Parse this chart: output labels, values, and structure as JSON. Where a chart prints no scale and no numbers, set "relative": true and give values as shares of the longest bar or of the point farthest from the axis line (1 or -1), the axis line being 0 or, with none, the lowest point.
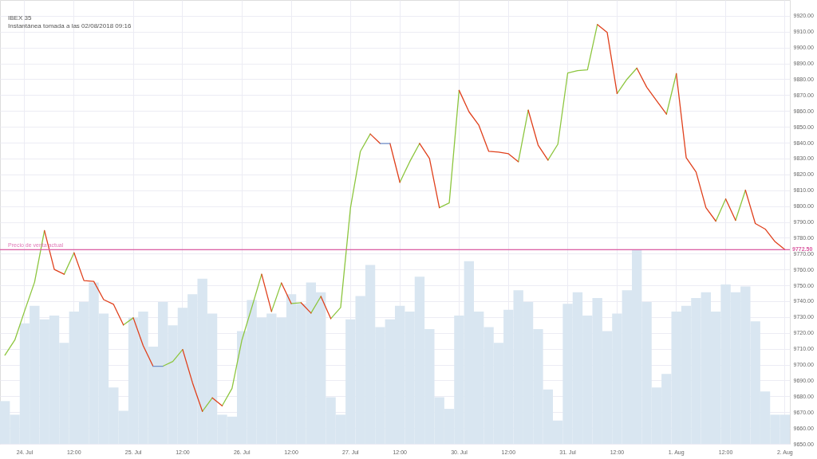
{
  "chart_data": [
    {
      "type": "line",
      "title": "IBEX 35",
      "subtitle": "Instantánea tomada a las 02/08/2018 09:16",
      "categories": [
        null,
        null,
        "24. Jul",
        null,
        null,
        null,
        null,
        "12:00",
        null,
        null,
        null,
        null,
        null,
        "25. Jul",
        null,
        null,
        null,
        null,
        "12:00",
        null,
        null,
        null,
        null,
        null,
        "26. Jul",
        null,
        null,
        null,
        null,
        "12:00",
        null,
        null,
        null,
        null,
        null,
        "27. Jul",
        null,
        null,
        null,
        null,
        "12:00",
        null,
        null,
        null,
        null,
        null,
        "30. Jul",
        null,
        null,
        null,
        null,
        "12:00",
        null,
        null,
        null,
        null,
        null,
        "31. Jul",
        null,
        null,
        null,
        null,
        "12:00",
        null,
        null,
        null,
        null,
        null,
        "1. Aug",
        null,
        null,
        null,
        null,
        "12:00",
        null,
        null,
        null,
        null,
        null,
        "2. Aug"
      ],
      "ylim": [
        9650,
        9930
      ],
      "yticks": [
        {
          "value": 9650,
          "label": "9650.00"
        },
        {
          "value": 9660,
          "label": "9660.00"
        },
        {
          "value": 9670,
          "label": "9670.00"
        },
        {
          "value": 9680,
          "label": "9680.00"
        },
        {
          "value": 9690,
          "label": "9690.00"
        },
        {
          "value": 9700,
          "label": "9700.00"
        },
        {
          "value": 9710,
          "label": "9710.00"
        },
        {
          "value": 9720,
          "label": "9720.00"
        },
        {
          "value": 9730,
          "label": "9730.00"
        },
        {
          "value": 9740,
          "label": "9740.00"
        },
        {
          "value": 9750,
          "label": "9750.00"
        },
        {
          "value": 9760,
          "label": "9760.00"
        },
        {
          "value": 9770,
          "label": "9770.00"
        },
        {
          "value": 9780,
          "label": "9780.00"
        },
        {
          "value": 9790,
          "label": "9790.00"
        },
        {
          "value": 9800,
          "label": "9800.00"
        },
        {
          "value": 9810,
          "label": "9810.00"
        },
        {
          "value": 9820,
          "label": "9820.00"
        },
        {
          "value": 9830,
          "label": "9830.00"
        },
        {
          "value": 9840,
          "label": "9840.00"
        },
        {
          "value": 9850,
          "label": "9850.00"
        },
        {
          "value": 9860,
          "label": "9860.00"
        },
        {
          "value": 9870,
          "label": "9870.00"
        },
        {
          "value": 9880,
          "label": "9880.00"
        },
        {
          "value": 9890,
          "label": "9890.00"
        },
        {
          "value": 9900,
          "label": "9900.00"
        },
        {
          "value": 9910,
          "label": "9910.00"
        },
        {
          "value": 9920,
          "label": "9920.00"
        }
      ],
      "grid": true,
      "ref_lines": [
        {
          "axis": "y",
          "value": 9772.5,
          "label": "Precio de venta actual",
          "color": "#e07bb8"
        },
        {
          "axis": "y",
          "value": 9772.5,
          "label": "9772.50",
          "color": "#d9569f"
        }
      ],
      "series": [
        {
          "color": "#8dc63f",
          "line_style": "solid",
          "marker": "none",
          "values": [
            9706,
            9715.5,
            9734,
            9752,
            9784.5,
            null,
            null,
            null,
            null,
            null,
            null,
            null,
            9725,
            9729.5,
            null,
            null,
            null,
            null,
            null,
            null,
            9670.5,
            9679,
            null,
            null,
            null,
            null,
            null,
            9733.5,
            9751.5,
            null,
            null,
            9732.5,
            9743,
            null,
            null,
            null,
            null,
            null,
            null,
            null,
            9815,
            9828,
            9839.5,
            null,
            null,
            null,
            null,
            null,
            null,
            null,
            null,
            null,
            9828,
            9860.5,
            null,
            null,
            null,
            null,
            null,
            null,
            null,
            null,
            9871,
            9880,
            9887,
            null,
            null,
            null,
            null,
            null,
            null,
            null,
            9790.5,
            9804.5,
            null,
            null,
            null,
            null,
            null,
            null
          ]
        },
        {
          "color": "#8dc63f",
          "line_style": "solid",
          "marker": "none",
          "values": [
            null,
            null,
            null,
            null,
            null,
            null,
            9757,
            9770.5,
            null,
            null,
            null,
            null,
            null,
            null,
            null,
            null,
            9699,
            9702,
            9709.5,
            null,
            null,
            null,
            9674,
            9685,
            9715.5,
            9736,
            9757,
            null,
            null,
            9738.5,
            9739,
            null,
            null,
            9729,
            9736,
            9799,
            9834.5,
            9845.5,
            null,
            null,
            null,
            null,
            null,
            null,
            9799,
            9802,
            9873,
            null,
            null,
            null,
            null,
            null,
            null,
            null,
            null,
            9829,
            9839,
            9884,
            9885.5,
            9886,
            9914.5,
            null,
            null,
            null,
            null,
            null,
            null,
            9858,
            9883.5,
            null,
            null,
            null,
            null,
            null,
            9791,
            9810,
            null,
            null,
            null,
            null
          ]
        },
        {
          "color": "#e0401c",
          "line_style": "solid",
          "marker": "none",
          "values": [
            null,
            null,
            null,
            null,
            9784.5,
            9760,
            9757,
            null,
            null,
            null,
            null,
            null,
            null,
            9729.5,
            9712,
            9699,
            null,
            null,
            null,
            null,
            null,
            9679,
            9674,
            null,
            null,
            null,
            null,
            null,
            9751.5,
            9738.5,
            null,
            null,
            9743,
            9729,
            null,
            null,
            null,
            null,
            null,
            9839.5,
            9815,
            null,
            null,
            null,
            null,
            null,
            9873,
            9859.5,
            9851,
            9834.5,
            9834,
            9833,
            9828,
            null,
            null,
            null,
            null,
            null,
            null,
            null,
            9914.5,
            9909.5,
            9871,
            null,
            null,
            null,
            null,
            null,
            9883.5,
            9830.5,
            9821.5,
            9799,
            9790.5,
            null,
            null,
            9810,
            9789,
            9785.5,
            9777.5,
            9772.5
          ]
        },
        {
          "color": "#e0401c",
          "line_style": "solid",
          "marker": "none",
          "values": [
            null,
            null,
            null,
            null,
            null,
            null,
            null,
            9770.5,
            9753,
            9752.5,
            9741,
            9738,
            9725,
            null,
            null,
            null,
            null,
            null,
            9709.5,
            9688.5,
            9670.5,
            null,
            null,
            null,
            null,
            null,
            9757,
            9733.5,
            null,
            null,
            9739,
            9732.5,
            null,
            null,
            null,
            null,
            null,
            9845.5,
            9839.5,
            null,
            null,
            null,
            9839.5,
            9830,
            9799,
            null,
            null,
            null,
            null,
            null,
            null,
            null,
            null,
            9860.5,
            9838.5,
            9829,
            null,
            null,
            null,
            null,
            null,
            null,
            null,
            null,
            9887,
            9875,
            9866.5,
            9858,
            null,
            null,
            null,
            null,
            null,
            9804.5,
            9791,
            null,
            null,
            null,
            null,
            null
          ]
        },
        {
          "color": "#6f8fc9",
          "line_style": "solid",
          "marker": "none",
          "values": [
            null,
            null,
            null,
            null,
            null,
            null,
            null,
            null,
            null,
            null,
            null,
            null,
            null,
            null,
            null,
            9699,
            9699,
            null,
            null,
            null,
            null,
            null,
            null,
            null,
            null,
            null,
            null,
            null,
            null,
            null,
            null,
            null,
            null,
            null,
            null,
            null,
            null,
            null,
            9839.5,
            9839.5,
            null,
            null,
            null,
            null,
            null,
            null,
            null,
            null,
            null,
            null,
            null,
            null,
            null,
            null,
            null,
            null,
            null,
            null,
            null,
            null,
            null,
            null,
            null,
            null,
            null,
            null,
            null,
            null,
            null,
            null,
            null,
            null,
            null,
            null,
            null,
            null,
            null,
            null,
            null,
            null
          ]
        }
      ]
    },
    {
      "type": "bar",
      "relative": true,
      "color": "#d9e6f1",
      "categories": [
        null,
        null,
        null,
        null,
        null,
        null,
        null,
        null,
        null,
        null,
        null,
        null,
        null,
        null,
        null,
        null,
        null,
        null,
        null,
        null,
        null,
        null,
        null,
        null,
        null,
        null,
        null,
        null,
        null,
        null,
        null,
        null,
        null,
        null,
        null,
        null,
        null,
        null,
        null,
        null,
        null,
        null,
        null,
        null,
        null,
        null,
        null,
        null,
        null,
        null,
        null,
        null,
        null,
        null,
        null,
        null,
        null,
        null,
        null,
        null,
        null,
        null,
        null,
        null,
        null,
        null,
        null,
        null,
        null,
        null,
        null,
        null,
        null,
        null,
        null,
        null,
        null,
        null,
        null,
        null
      ],
      "values": [
        0.22,
        0.15,
        0.62,
        0.71,
        0.64,
        0.66,
        0.52,
        0.68,
        0.73,
        0.83,
        0.67,
        0.29,
        0.17,
        0.65,
        0.68,
        0.5,
        0.73,
        0.61,
        0.7,
        0.77,
        0.85,
        0.67,
        0.15,
        0.14,
        0.58,
        0.74,
        0.65,
        0.67,
        0.65,
        0.77,
        0.72,
        0.83,
        0.78,
        0.24,
        0.15,
        0.64,
        0.76,
        0.92,
        0.6,
        0.64,
        0.71,
        0.68,
        0.86,
        0.59,
        0.24,
        0.18,
        0.66,
        0.94,
        0.68,
        0.6,
        0.52,
        0.69,
        0.79,
        0.73,
        0.59,
        0.28,
        0.12,
        0.72,
        0.78,
        0.66,
        0.75,
        0.58,
        0.67,
        0.79,
        1,
        0.73,
        0.29,
        0.36,
        0.68,
        0.71,
        0.75,
        0.78,
        0.68,
        0.82,
        0.78,
        0.81,
        0.63,
        0.27,
        0.15,
        0.15
      ]
    }
  ]
}
